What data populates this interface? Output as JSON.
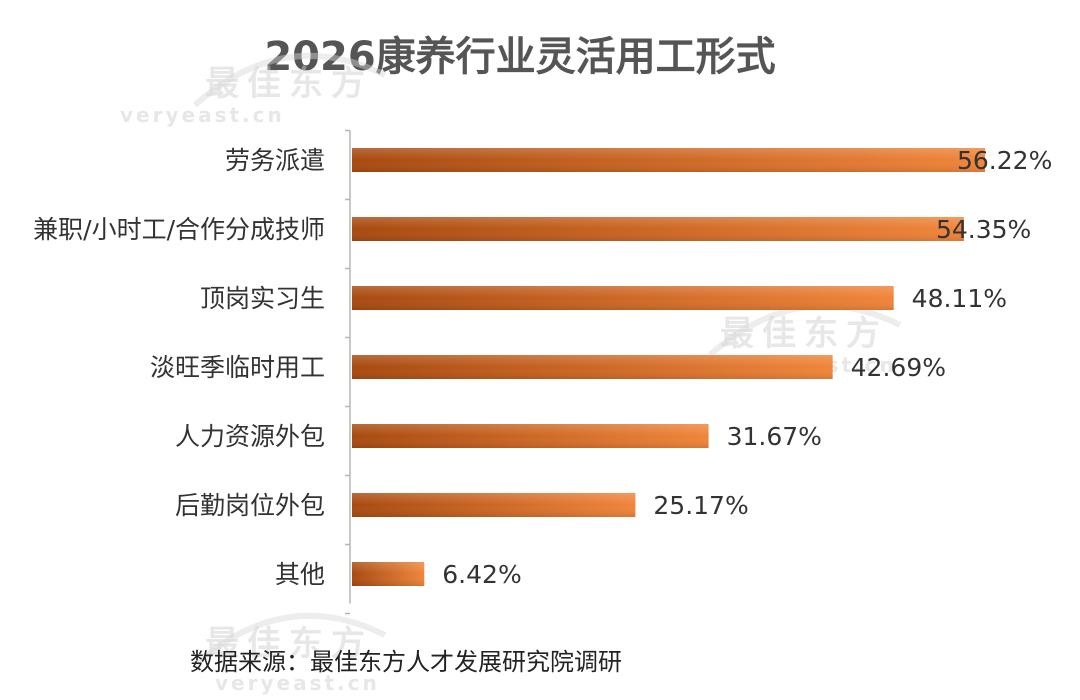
{
  "chart_data": {
    "type": "bar",
    "orientation": "horizontal",
    "title": "2026康养行业灵活用工形式",
    "categories": [
      "劳务派遣",
      "兼职/小时工/合作分成技师",
      "顶岗实习生",
      "淡旺季临时用工",
      "人力资源外包",
      "后勤岗位外包",
      "其他"
    ],
    "values": [
      56.22,
      54.35,
      48.11,
      42.69,
      31.67,
      25.17,
      6.42
    ],
    "value_labels": [
      "56.22%",
      "54.35%",
      "48.11%",
      "42.69%",
      "31.67%",
      "25.17%",
      "6.42%"
    ],
    "unit": "%",
    "xlim": [
      0,
      56.22
    ],
    "grid": false,
    "legend": "none",
    "bar_color_start": "#a84a10",
    "bar_color_end": "#f0853a",
    "axis_color": "#b5b5b5",
    "text_color": "#333333",
    "title_color": "#555555"
  },
  "source_note": "数据来源：最佳东方人才发展研究院调研",
  "watermarks": [
    {
      "main": "最佳东方",
      "sub": "veryeast.cn"
    },
    {
      "main": "最佳东方",
      "sub": "veryeast.cn"
    },
    {
      "main": "最佳东方",
      "sub": "veryeast.cn"
    }
  ]
}
